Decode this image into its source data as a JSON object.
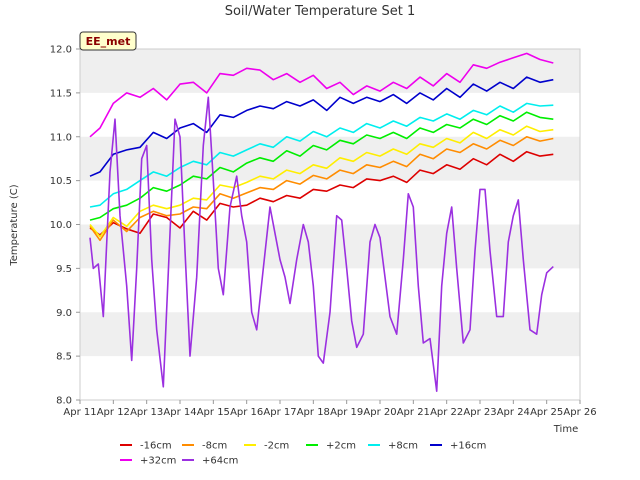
{
  "chart_data": {
    "type": "line",
    "title": "Soil/Water Temperature Set 1",
    "xlabel": "Time",
    "ylabel": "Temperature (C)",
    "badge": "EE_met",
    "xlim": [
      11,
      26
    ],
    "ylim": [
      8.0,
      12.0
    ],
    "x_ticks": [
      "Apr 11",
      "Apr 12",
      "Apr 13",
      "Apr 14",
      "Apr 15",
      "Apr 16",
      "Apr 17",
      "Apr 18",
      "Apr 19",
      "Apr 20",
      "Apr 21",
      "Apr 22",
      "Apr 23",
      "Apr 24",
      "Apr 25",
      "Apr 26"
    ],
    "y_ticks": [
      "8.0",
      "8.5",
      "9.0",
      "9.5",
      "10.0",
      "10.5",
      "11.0",
      "11.5",
      "12.0"
    ],
    "grid": "alternating horizontal bands",
    "legend_position": "bottom",
    "series": [
      {
        "name": "-16cm",
        "color": "#dd0000",
        "x": [
          11.3,
          11.6,
          12.0,
          12.4,
          12.8,
          13.2,
          13.6,
          14.0,
          14.4,
          14.8,
          15.2,
          15.6,
          16.0,
          16.4,
          16.8,
          17.2,
          17.6,
          18.0,
          18.4,
          18.8,
          19.2,
          19.6,
          20.0,
          20.4,
          20.8,
          21.2,
          21.6,
          22.0,
          22.4,
          22.8,
          23.2,
          23.6,
          24.0,
          24.4,
          24.8,
          25.2
        ],
        "y": [
          9.96,
          9.88,
          10.02,
          9.95,
          9.9,
          10.12,
          10.08,
          9.96,
          10.15,
          10.05,
          10.24,
          10.2,
          10.22,
          10.3,
          10.26,
          10.33,
          10.3,
          10.4,
          10.38,
          10.45,
          10.42,
          10.52,
          10.5,
          10.55,
          10.48,
          10.62,
          10.58,
          10.68,
          10.63,
          10.75,
          10.68,
          10.8,
          10.72,
          10.83,
          10.78,
          10.8
        ]
      },
      {
        "name": "-8cm",
        "color": "#ff8c00",
        "x": [
          11.3,
          11.6,
          12.0,
          12.4,
          12.8,
          13.2,
          13.6,
          14.0,
          14.4,
          14.8,
          15.2,
          15.6,
          16.0,
          16.4,
          16.8,
          17.2,
          17.6,
          18.0,
          18.4,
          18.8,
          19.2,
          19.6,
          20.0,
          20.4,
          20.8,
          21.2,
          21.6,
          22.0,
          22.4,
          22.8,
          23.2,
          23.6,
          24.0,
          24.4,
          24.8,
          25.2
        ],
        "y": [
          9.98,
          9.82,
          10.05,
          9.92,
          10.08,
          10.15,
          10.1,
          10.12,
          10.2,
          10.18,
          10.35,
          10.3,
          10.36,
          10.42,
          10.4,
          10.5,
          10.46,
          10.56,
          10.52,
          10.62,
          10.58,
          10.68,
          10.65,
          10.72,
          10.66,
          10.8,
          10.75,
          10.86,
          10.82,
          10.92,
          10.86,
          10.96,
          10.9,
          11.0,
          10.95,
          10.98
        ]
      },
      {
        "name": "-2cm",
        "color": "#ffee00",
        "x": [
          11.3,
          11.6,
          12.0,
          12.4,
          12.8,
          13.2,
          13.6,
          14.0,
          14.4,
          14.8,
          15.2,
          15.6,
          16.0,
          16.4,
          16.8,
          17.2,
          17.6,
          18.0,
          18.4,
          18.8,
          19.2,
          19.6,
          20.0,
          20.4,
          20.8,
          21.2,
          21.6,
          22.0,
          22.4,
          22.8,
          23.2,
          23.6,
          24.0,
          24.4,
          24.8,
          25.2
        ],
        "y": [
          10.0,
          9.86,
          10.08,
          9.98,
          10.15,
          10.22,
          10.18,
          10.22,
          10.3,
          10.28,
          10.45,
          10.42,
          10.48,
          10.55,
          10.52,
          10.62,
          10.58,
          10.68,
          10.64,
          10.76,
          10.72,
          10.82,
          10.78,
          10.86,
          10.8,
          10.92,
          10.88,
          10.98,
          10.93,
          11.05,
          10.98,
          11.08,
          11.02,
          11.12,
          11.06,
          11.08
        ]
      },
      {
        "name": "+2cm",
        "color": "#00ee00",
        "x": [
          11.3,
          11.6,
          12.0,
          12.4,
          12.8,
          13.2,
          13.6,
          14.0,
          14.4,
          14.8,
          15.2,
          15.6,
          16.0,
          16.4,
          16.8,
          17.2,
          17.6,
          18.0,
          18.4,
          18.8,
          19.2,
          19.6,
          20.0,
          20.4,
          20.8,
          21.2,
          21.6,
          22.0,
          22.4,
          22.8,
          23.2,
          23.6,
          24.0,
          24.4,
          24.8,
          25.2
        ],
        "y": [
          10.05,
          10.08,
          10.18,
          10.22,
          10.3,
          10.42,
          10.38,
          10.45,
          10.55,
          10.52,
          10.65,
          10.6,
          10.7,
          10.76,
          10.72,
          10.84,
          10.78,
          10.9,
          10.85,
          10.96,
          10.92,
          11.02,
          10.98,
          11.05,
          10.98,
          11.1,
          11.05,
          11.14,
          11.1,
          11.2,
          11.14,
          11.24,
          11.18,
          11.28,
          11.22,
          11.2
        ]
      },
      {
        "name": "+8cm",
        "color": "#00eeee",
        "x": [
          11.3,
          11.6,
          12.0,
          12.4,
          12.8,
          13.2,
          13.6,
          14.0,
          14.4,
          14.8,
          15.2,
          15.6,
          16.0,
          16.4,
          16.8,
          17.2,
          17.6,
          18.0,
          18.4,
          18.8,
          19.2,
          19.6,
          20.0,
          20.4,
          20.8,
          21.2,
          21.6,
          22.0,
          22.4,
          22.8,
          23.2,
          23.6,
          24.0,
          24.4,
          24.8,
          25.2
        ],
        "y": [
          10.2,
          10.22,
          10.35,
          10.4,
          10.5,
          10.6,
          10.55,
          10.65,
          10.72,
          10.68,
          10.82,
          10.78,
          10.85,
          10.92,
          10.88,
          11.0,
          10.95,
          11.06,
          11.0,
          11.1,
          11.05,
          11.15,
          11.1,
          11.18,
          11.12,
          11.22,
          11.18,
          11.26,
          11.2,
          11.3,
          11.25,
          11.35,
          11.28,
          11.38,
          11.35,
          11.36
        ]
      },
      {
        "name": "+16cm",
        "color": "#0000cc",
        "x": [
          11.3,
          11.6,
          12.0,
          12.4,
          12.8,
          13.2,
          13.6,
          14.0,
          14.4,
          14.8,
          15.2,
          15.6,
          16.0,
          16.4,
          16.8,
          17.2,
          17.6,
          18.0,
          18.4,
          18.8,
          19.2,
          19.6,
          20.0,
          20.4,
          20.8,
          21.2,
          21.6,
          22.0,
          22.4,
          22.8,
          23.2,
          23.6,
          24.0,
          24.4,
          24.8,
          25.2
        ],
        "y": [
          10.55,
          10.6,
          10.8,
          10.85,
          10.88,
          11.05,
          10.98,
          11.1,
          11.15,
          11.05,
          11.25,
          11.22,
          11.3,
          11.35,
          11.32,
          11.4,
          11.35,
          11.42,
          11.3,
          11.45,
          11.38,
          11.45,
          11.4,
          11.48,
          11.38,
          11.5,
          11.42,
          11.55,
          11.45,
          11.6,
          11.52,
          11.62,
          11.55,
          11.68,
          11.62,
          11.65
        ]
      },
      {
        "name": "+32cm",
        "color": "#ee00ee",
        "x": [
          11.3,
          11.6,
          12.0,
          12.4,
          12.8,
          13.2,
          13.6,
          14.0,
          14.4,
          14.8,
          15.2,
          15.6,
          16.0,
          16.4,
          16.8,
          17.2,
          17.6,
          18.0,
          18.4,
          18.8,
          19.2,
          19.6,
          20.0,
          20.4,
          20.8,
          21.2,
          21.6,
          22.0,
          22.4,
          22.8,
          23.2,
          23.6,
          24.0,
          24.4,
          24.8,
          25.2
        ],
        "y": [
          11.0,
          11.1,
          11.38,
          11.5,
          11.45,
          11.55,
          11.42,
          11.6,
          11.62,
          11.5,
          11.72,
          11.7,
          11.78,
          11.76,
          11.65,
          11.72,
          11.62,
          11.7,
          11.55,
          11.62,
          11.48,
          11.58,
          11.52,
          11.62,
          11.55,
          11.68,
          11.58,
          11.72,
          11.62,
          11.82,
          11.78,
          11.85,
          11.9,
          11.95,
          11.88,
          11.84
        ]
      },
      {
        "name": "+64cm",
        "color": "#9b30e0",
        "x": [
          11.3,
          11.4,
          11.55,
          11.7,
          11.9,
          12.05,
          12.2,
          12.4,
          12.55,
          12.7,
          12.85,
          13.0,
          13.15,
          13.3,
          13.5,
          13.7,
          13.85,
          14.0,
          14.15,
          14.3,
          14.5,
          14.7,
          14.85,
          15.0,
          15.15,
          15.3,
          15.5,
          15.7,
          15.85,
          16.0,
          16.15,
          16.3,
          16.5,
          16.7,
          16.85,
          17.0,
          17.15,
          17.3,
          17.5,
          17.7,
          17.85,
          18.0,
          18.15,
          18.3,
          18.5,
          18.7,
          18.85,
          19.0,
          19.15,
          19.3,
          19.5,
          19.7,
          19.85,
          20.0,
          20.15,
          20.3,
          20.5,
          20.7,
          20.85,
          21.0,
          21.15,
          21.3,
          21.5,
          21.7,
          21.85,
          22.0,
          22.15,
          22.3,
          22.5,
          22.7,
          22.85,
          23.0,
          23.15,
          23.3,
          23.5,
          23.7,
          23.85,
          24.0,
          24.15,
          24.3,
          24.5,
          24.7,
          24.85,
          25.0,
          25.2
        ],
        "y": [
          9.85,
          9.5,
          9.55,
          8.95,
          10.6,
          11.2,
          10.1,
          9.3,
          8.45,
          9.5,
          10.75,
          10.9,
          9.6,
          8.8,
          8.15,
          9.9,
          11.2,
          11.0,
          9.7,
          8.5,
          9.4,
          10.9,
          11.45,
          10.5,
          9.5,
          9.2,
          10.2,
          10.55,
          10.1,
          9.8,
          9.0,
          8.8,
          9.5,
          10.2,
          9.9,
          9.6,
          9.4,
          9.1,
          9.6,
          10.0,
          9.8,
          9.3,
          8.5,
          8.42,
          9.0,
          10.1,
          10.05,
          9.5,
          8.9,
          8.6,
          8.75,
          9.8,
          10.0,
          9.85,
          9.4,
          8.95,
          8.75,
          9.6,
          10.35,
          10.2,
          9.3,
          8.65,
          8.7,
          8.1,
          9.3,
          9.9,
          10.2,
          9.5,
          8.65,
          8.8,
          9.7,
          10.4,
          10.4,
          9.7,
          8.95,
          8.95,
          9.8,
          10.1,
          10.28,
          9.6,
          8.8,
          8.75,
          9.2,
          9.45,
          9.52
        ]
      }
    ]
  }
}
